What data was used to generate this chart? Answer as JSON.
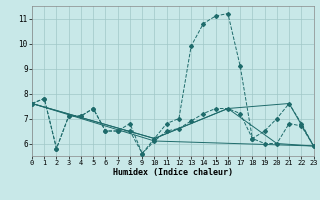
{
  "xlabel": "Humidex (Indice chaleur)",
  "bg_color": "#c8e8e8",
  "grid_color": "#a0c8c8",
  "line_color": "#1e6b6b",
  "xlim": [
    0,
    23
  ],
  "ylim": [
    5.5,
    11.5
  ],
  "yticks": [
    6,
    7,
    8,
    9,
    10,
    11
  ],
  "xticks": [
    0,
    1,
    2,
    3,
    4,
    5,
    6,
    7,
    8,
    9,
    10,
    11,
    12,
    13,
    14,
    15,
    16,
    17,
    18,
    19,
    20,
    21,
    22,
    23
  ],
  "series": [
    {
      "x": [
        0,
        1,
        2,
        3,
        4,
        5,
        6,
        7,
        8,
        9,
        10,
        11,
        12,
        13,
        14,
        15,
        16,
        17,
        18,
        19,
        20,
        21,
        22,
        23
      ],
      "y": [
        7.6,
        7.8,
        5.8,
        7.1,
        7.1,
        7.4,
        6.5,
        6.5,
        6.5,
        5.6,
        6.1,
        6.5,
        6.6,
        6.9,
        7.2,
        7.4,
        7.4,
        7.2,
        6.2,
        6.0,
        6.0,
        6.8,
        6.7,
        5.9
      ],
      "marker": "D",
      "linestyle": "--",
      "markersize": 2.0
    },
    {
      "x": [
        0,
        1,
        2,
        3,
        4,
        5,
        6,
        7,
        8,
        9,
        10,
        11,
        12,
        13,
        14,
        15,
        16,
        17,
        18,
        19,
        20,
        21,
        22,
        23
      ],
      "y": [
        7.6,
        7.8,
        5.8,
        7.1,
        7.1,
        7.4,
        6.5,
        6.5,
        6.8,
        5.6,
        6.2,
        6.8,
        7.0,
        9.9,
        10.8,
        11.1,
        11.2,
        9.1,
        6.2,
        6.5,
        7.0,
        7.6,
        6.8,
        5.9
      ],
      "marker": "D",
      "linestyle": "--",
      "markersize": 2.0
    },
    {
      "x": [
        0,
        10,
        23
      ],
      "y": [
        7.6,
        6.1,
        5.9
      ],
      "marker": null,
      "linestyle": "-",
      "markersize": 0
    },
    {
      "x": [
        0,
        10,
        16,
        21,
        23
      ],
      "y": [
        7.6,
        6.2,
        7.4,
        7.6,
        5.9
      ],
      "marker": null,
      "linestyle": "-",
      "markersize": 0
    },
    {
      "x": [
        0,
        10,
        16,
        20,
        23
      ],
      "y": [
        7.6,
        6.2,
        7.4,
        6.0,
        5.9
      ],
      "marker": null,
      "linestyle": "-",
      "markersize": 0
    }
  ]
}
